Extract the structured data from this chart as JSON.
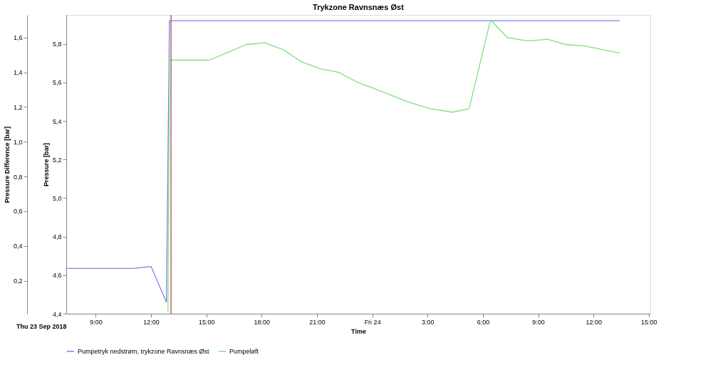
{
  "chart_data": {
    "type": "line",
    "title": "Trykzone Ravnsnæs Øst",
    "xlabel": "Time",
    "ylabel": "Pressure [bar]",
    "y2label": "Pressure Difference [bar]",
    "annotations": [
      "Thu 23 Sep 2018"
    ],
    "series": [
      {
        "name": "Pumpetryk nedstrøm, trykzone Ravnsnæs Øst",
        "color": "#8080f0",
        "axis": "y",
        "x": [
          "2018-09-23T07:24",
          "2018-09-23T11:00",
          "2018-09-23T12:00",
          "2018-09-23T12:50",
          "2018-09-23T13:00",
          "2018-09-24T13:25"
        ],
        "values": [
          4.635,
          4.635,
          4.645,
          4.46,
          5.92,
          5.92
        ]
      },
      {
        "name": "Pumpeløft",
        "color": "#80e080",
        "axis": "y2",
        "x": [
          "2018-09-23T12:55",
          "2018-09-23T13:00",
          "2018-09-23T15:10",
          "2018-09-23T16:05",
          "2018-09-23T17:10",
          "2018-09-23T18:10",
          "2018-09-23T19:10",
          "2018-09-23T20:10",
          "2018-09-23T21:10",
          "2018-09-23T22:10",
          "2018-09-23T23:15",
          "2018-09-24T00:30",
          "2018-09-24T01:55",
          "2018-09-24T03:10",
          "2018-09-24T04:20",
          "2018-09-24T05:15",
          "2018-09-24T06:25",
          "2018-09-24T07:20",
          "2018-09-24T08:25",
          "2018-09-24T09:30",
          "2018-09-24T10:30",
          "2018-09-24T11:35",
          "2018-09-24T13:25"
        ],
        "values": [
          0.02,
          1.47,
          1.47,
          1.51,
          1.56,
          1.57,
          1.53,
          1.46,
          1.42,
          1.4,
          1.34,
          1.29,
          1.23,
          1.19,
          1.17,
          1.19,
          1.7,
          1.6,
          1.58,
          1.59,
          1.56,
          1.55,
          1.51
        ]
      }
    ],
    "ref_lines": [
      {
        "axis": "x",
        "value": "2018-09-23T13:05",
        "color": "#a05050"
      }
    ],
    "xlim": [
      "2018-09-23T07:24",
      "2018-09-24T15:05"
    ],
    "xticks": [
      {
        "value": "2018-09-23T09:00",
        "label": "9:00"
      },
      {
        "value": "2018-09-23T12:00",
        "label": "12:00"
      },
      {
        "value": "2018-09-23T15:00",
        "label": "15:00"
      },
      {
        "value": "2018-09-23T18:00",
        "label": "18:00"
      },
      {
        "value": "2018-09-23T21:00",
        "label": "21:00"
      },
      {
        "value": "2018-09-24T00:00",
        "label": "Fri 24"
      },
      {
        "value": "2018-09-24T03:00",
        "label": "3:00"
      },
      {
        "value": "2018-09-24T06:00",
        "label": "6:00"
      },
      {
        "value": "2018-09-24T09:00",
        "label": "9:00"
      },
      {
        "value": "2018-09-24T12:00",
        "label": "12:00"
      },
      {
        "value": "2018-09-24T15:00",
        "label": "15:00"
      }
    ],
    "ylim": [
      4.4,
      5.95
    ],
    "yticks": [
      {
        "value": 4.4,
        "label": "4,4"
      },
      {
        "value": 4.6,
        "label": "4,6"
      },
      {
        "value": 4.8,
        "label": "4,8"
      },
      {
        "value": 5.0,
        "label": "5,0"
      },
      {
        "value": 5.2,
        "label": "5,2"
      },
      {
        "value": 5.4,
        "label": "5,4"
      },
      {
        "value": 5.6,
        "label": "5,6"
      },
      {
        "value": 5.8,
        "label": "5,8"
      }
    ],
    "y2lim": [
      0.01,
      1.73
    ],
    "y2ticks": [
      {
        "value": 0.2,
        "label": "0,2"
      },
      {
        "value": 0.4,
        "label": "0,4"
      },
      {
        "value": 0.6,
        "label": "0,6"
      },
      {
        "value": 0.8,
        "label": "0,8"
      },
      {
        "value": 1.0,
        "label": "1,0"
      },
      {
        "value": 1.2,
        "label": "1,2"
      },
      {
        "value": 1.4,
        "label": "1,4"
      },
      {
        "value": 1.6,
        "label": "1,6"
      }
    ],
    "grid": false,
    "legend": "bottom",
    "marker": "none",
    "line_style": "solid"
  }
}
